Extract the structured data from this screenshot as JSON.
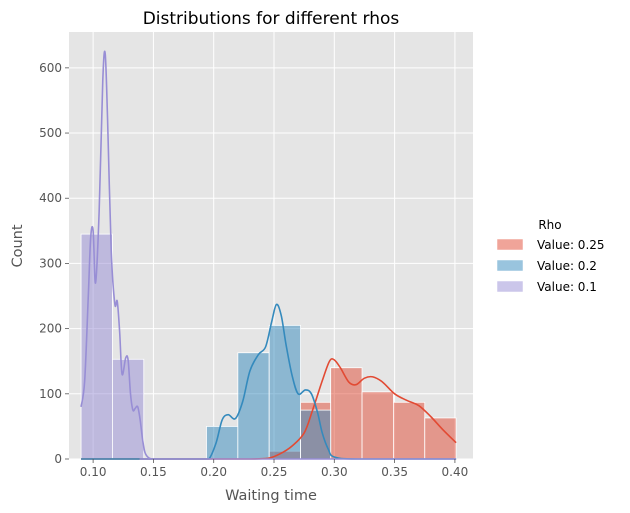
{
  "chart_data": {
    "type": "histogram",
    "title": "Distributions for different rhos",
    "xlabel": "Waiting time",
    "ylabel": "Count",
    "xlim": [
      0.08,
      0.415
    ],
    "ylim": [
      0,
      655
    ],
    "xticks": [
      0.1,
      0.15,
      0.2,
      0.25,
      0.3,
      0.35,
      0.4
    ],
    "xtick_labels": [
      "0.10",
      "0.15",
      "0.20",
      "0.25",
      "0.30",
      "0.35",
      "0.40"
    ],
    "yticks": [
      0,
      100,
      200,
      300,
      400,
      500,
      600
    ],
    "ytick_labels": [
      "0",
      "100",
      "200",
      "300",
      "400",
      "500",
      "600"
    ],
    "grid": true,
    "legend": {
      "title": "Rho",
      "placement": "right"
    },
    "series": [
      {
        "name": "Value: 0.25",
        "color": "#E24A33",
        "bins": [
          {
            "x0": 0.09,
            "x1": 0.116,
            "count": 0
          },
          {
            "x0": 0.116,
            "x1": 0.142,
            "count": 0
          },
          {
            "x0": 0.142,
            "x1": 0.168,
            "count": 0
          },
          {
            "x0": 0.168,
            "x1": 0.194,
            "count": 0
          },
          {
            "x0": 0.194,
            "x1": 0.22,
            "count": 0
          },
          {
            "x0": 0.22,
            "x1": 0.246,
            "count": 0
          },
          {
            "x0": 0.246,
            "x1": 0.272,
            "count": 12
          },
          {
            "x0": 0.272,
            "x1": 0.297,
            "count": 87
          },
          {
            "x0": 0.297,
            "x1": 0.323,
            "count": 140
          },
          {
            "x0": 0.323,
            "x1": 0.349,
            "count": 103
          },
          {
            "x0": 0.349,
            "x1": 0.375,
            "count": 87
          },
          {
            "x0": 0.375,
            "x1": 0.401,
            "count": 63
          }
        ],
        "kde": {
          "x": [
            0.09,
            0.15,
            0.2,
            0.23,
            0.245,
            0.255,
            0.265,
            0.275,
            0.282,
            0.29,
            0.296,
            0.3,
            0.305,
            0.312,
            0.318,
            0.325,
            0.332,
            0.34,
            0.35,
            0.36,
            0.37,
            0.38,
            0.39,
            0.401
          ],
          "y": [
            0,
            0,
            0,
            0,
            1,
            8,
            20,
            40,
            75,
            120,
            150,
            152,
            140,
            118,
            114,
            124,
            126,
            118,
            100,
            90,
            82,
            65,
            45,
            25
          ]
        }
      },
      {
        "name": "Value: 0.2",
        "color": "#348ABD",
        "bins": [
          {
            "x0": 0.194,
            "x1": 0.22,
            "count": 50
          },
          {
            "x0": 0.22,
            "x1": 0.246,
            "count": 163
          },
          {
            "x0": 0.246,
            "x1": 0.272,
            "count": 205
          },
          {
            "x0": 0.272,
            "x1": 0.297,
            "count": 75
          }
        ],
        "kde": {
          "x": [
            0.09,
            0.15,
            0.19,
            0.196,
            0.202,
            0.207,
            0.212,
            0.218,
            0.224,
            0.23,
            0.237,
            0.243,
            0.248,
            0.252,
            0.256,
            0.26,
            0.265,
            0.27,
            0.276,
            0.281,
            0.286,
            0.29,
            0.295,
            0.3,
            0.32,
            0.401
          ],
          "y": [
            0,
            0,
            0,
            0,
            25,
            60,
            68,
            62,
            88,
            135,
            160,
            172,
            210,
            237,
            220,
            175,
            128,
            100,
            106,
            100,
            72,
            40,
            15,
            3,
            0,
            0
          ]
        }
      },
      {
        "name": "Value: 0.1",
        "color": "#988ED5",
        "bins": [
          {
            "x0": 0.09,
            "x1": 0.116,
            "count": 345
          },
          {
            "x0": 0.116,
            "x1": 0.142,
            "count": 153
          }
        ],
        "kde": {
          "x": [
            0.09,
            0.093,
            0.096,
            0.098,
            0.1,
            0.102,
            0.105,
            0.108,
            0.11,
            0.112,
            0.115,
            0.118,
            0.12,
            0.122,
            0.124,
            0.127,
            0.129,
            0.131,
            0.133,
            0.135,
            0.137,
            0.139,
            0.141,
            0.143,
            0.146,
            0.15,
            0.16,
            0.401
          ],
          "y": [
            80,
            120,
            250,
            340,
            350,
            270,
            380,
            580,
            622,
            520,
            320,
            238,
            242,
            195,
            130,
            155,
            152,
            100,
            75,
            78,
            80,
            60,
            30,
            10,
            2,
            0,
            0,
            0
          ]
        }
      }
    ]
  }
}
